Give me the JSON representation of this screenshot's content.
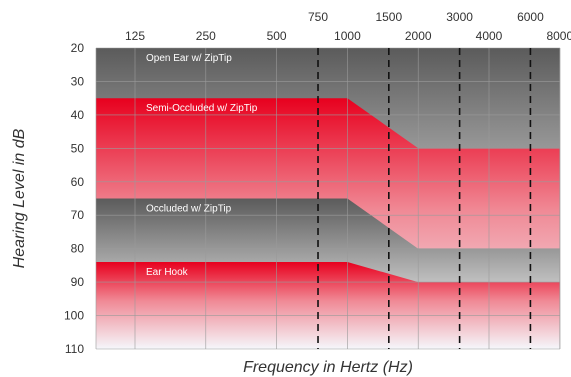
{
  "chart_data": {
    "type": "area",
    "title": "",
    "xlabel": "Frequency in Hertz (Hz)",
    "ylabel": "Hearing Level in dB",
    "x_scale": "log",
    "x_ticks_bottom": [
      "125",
      "250",
      "500",
      "1000",
      "2000",
      "4000",
      "8000"
    ],
    "x_ticks_top": [
      "750",
      "1500",
      "3000",
      "6000"
    ],
    "x_ticks_top_dashed": true,
    "y_ticks": [
      "20",
      "30",
      "40",
      "50",
      "60",
      "70",
      "80",
      "90",
      "100",
      "110"
    ],
    "ylim": [
      20,
      110
    ],
    "y_inverted": true,
    "grid": true,
    "series": [
      {
        "name": "Open Ear w/ ZipTip",
        "style": "gray",
        "upper": [
          [
            125,
            20
          ],
          [
            8000,
            20
          ]
        ],
        "lower": [
          [
            125,
            110
          ],
          [
            8000,
            110
          ]
        ]
      },
      {
        "name": "Semi-Occluded w/ ZipTip",
        "style": "red",
        "upper": [
          [
            125,
            35
          ],
          [
            1000,
            35
          ],
          [
            2000,
            50
          ],
          [
            8000,
            50
          ]
        ],
        "lower": [
          [
            125,
            110
          ],
          [
            8000,
            110
          ]
        ]
      },
      {
        "name": "Occluded w/ ZipTip",
        "style": "gray",
        "upper": [
          [
            125,
            65
          ],
          [
            1000,
            65
          ],
          [
            2000,
            80
          ],
          [
            8000,
            80
          ]
        ],
        "lower": [
          [
            125,
            110
          ],
          [
            8000,
            110
          ]
        ]
      },
      {
        "name": "Ear Hook",
        "style": "red",
        "upper": [
          [
            125,
            84
          ],
          [
            1000,
            84
          ],
          [
            2000,
            90
          ],
          [
            8000,
            90
          ]
        ],
        "lower": [
          [
            125,
            110
          ],
          [
            8000,
            110
          ]
        ]
      }
    ]
  }
}
